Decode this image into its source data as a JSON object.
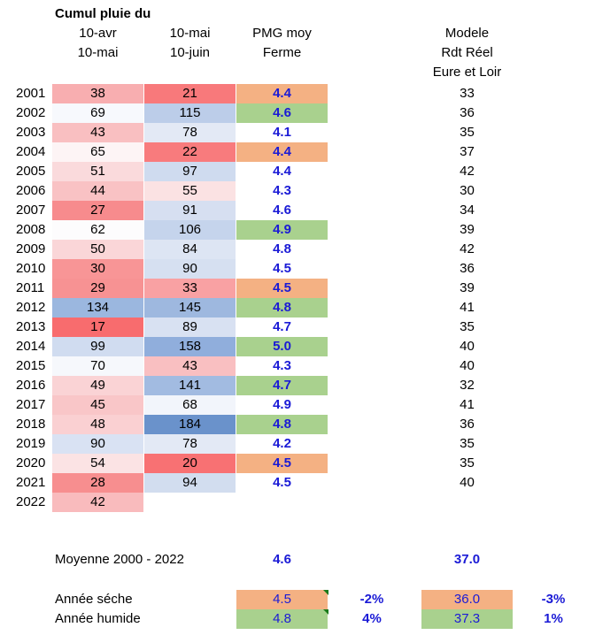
{
  "colors": {
    "dry": "#f4b183",
    "wet": "#a9d18e",
    "blue_text": "#1a1ad6"
  },
  "header": {
    "title": "Cumul pluie du",
    "col_apr": [
      "10-avr",
      "10-mai"
    ],
    "col_jun": [
      "10-mai",
      "10-juin"
    ],
    "col_pmg": [
      "PMG moy",
      "Ferme"
    ],
    "col_mod": [
      "Modele",
      "Rdt Réel",
      "Eure et Loir"
    ]
  },
  "rows": [
    {
      "year": "2001",
      "apr": "38",
      "apr_bg": "#f8aeb0",
      "jun": "21",
      "jun_bg": "#f8797b",
      "pmg": "4.4",
      "pmg_bg": "#f4b183",
      "model": "33"
    },
    {
      "year": "2002",
      "apr": "69",
      "apr_bg": "#f7f9fd",
      "jun": "115",
      "jun_bg": "#bccde9",
      "pmg": "4.6",
      "pmg_bg": "#a9d18e",
      "model": "36"
    },
    {
      "year": "2003",
      "apr": "43",
      "apr_bg": "#f9bfc1",
      "jun": "78",
      "jun_bg": "#e3e9f5",
      "pmg": "4.1",
      "pmg_bg": "",
      "model": "35"
    },
    {
      "year": "2004",
      "apr": "65",
      "apr_bg": "#fdf4f5",
      "jun": "22",
      "jun_bg": "#f87b7d",
      "pmg": "4.4",
      "pmg_bg": "#f4b183",
      "model": "37"
    },
    {
      "year": "2005",
      "apr": "51",
      "apr_bg": "#fadadc",
      "jun": "97",
      "jun_bg": "#cfdbef",
      "pmg": "4.4",
      "pmg_bg": "",
      "model": "42"
    },
    {
      "year": "2006",
      "apr": "44",
      "apr_bg": "#f9c2c4",
      "jun": "55",
      "jun_bg": "#fbe2e3",
      "pmg": "4.3",
      "pmg_bg": "",
      "model": "30"
    },
    {
      "year": "2007",
      "apr": "27",
      "apr_bg": "#f78b8d",
      "jun": "91",
      "jun_bg": "#d6dff1",
      "pmg": "4.6",
      "pmg_bg": "",
      "model": "34"
    },
    {
      "year": "2008",
      "apr": "62",
      "apr_bg": "#fdfcfd",
      "jun": "106",
      "jun_bg": "#c5d4ec",
      "pmg": "4.9",
      "pmg_bg": "#a9d18e",
      "model": "39"
    },
    {
      "year": "2009",
      "apr": "50",
      "apr_bg": "#fad6d8",
      "jun": "84",
      "jun_bg": "#dde5f3",
      "pmg": "4.8",
      "pmg_bg": "",
      "model": "42"
    },
    {
      "year": "2010",
      "apr": "30",
      "apr_bg": "#f89596",
      "jun": "90",
      "jun_bg": "#d6e0f1",
      "pmg": "4.5",
      "pmg_bg": "",
      "model": "36"
    },
    {
      "year": "2011",
      "apr": "29",
      "apr_bg": "#f79293",
      "jun": "33",
      "jun_bg": "#f9a1a3",
      "pmg": "4.5",
      "pmg_bg": "#f4b183",
      "model": "39"
    },
    {
      "year": "2012",
      "apr": "134",
      "apr_bg": "#9bb7df",
      "jun": "145",
      "jun_bg": "#9eb8df",
      "pmg": "4.8",
      "pmg_bg": "#a9d18e",
      "model": "41"
    },
    {
      "year": "2013",
      "apr": "17",
      "apr_bg": "#f86c6e",
      "jun": "89",
      "jun_bg": "#d8e1f2",
      "pmg": "4.7",
      "pmg_bg": "",
      "model": "35"
    },
    {
      "year": "2014",
      "apr": "99",
      "apr_bg": "#d0dcf0",
      "jun": "158",
      "jun_bg": "#90aedc",
      "pmg": "5.0",
      "pmg_bg": "#a9d18e",
      "model": "40"
    },
    {
      "year": "2015",
      "apr": "70",
      "apr_bg": "#f6f8fc",
      "jun": "43",
      "jun_bg": "#f9bfc1",
      "pmg": "4.3",
      "pmg_bg": "",
      "model": "40"
    },
    {
      "year": "2016",
      "apr": "49",
      "apr_bg": "#fad3d5",
      "jun": "141",
      "jun_bg": "#a2bbe1",
      "pmg": "4.7",
      "pmg_bg": "#a9d18e",
      "model": "32"
    },
    {
      "year": "2017",
      "apr": "45",
      "apr_bg": "#f9c6c8",
      "jun": "68",
      "jun_bg": "#f2f5fb",
      "pmg": "4.9",
      "pmg_bg": "",
      "model": "41"
    },
    {
      "year": "2018",
      "apr": "48",
      "apr_bg": "#fad0d2",
      "jun": "184",
      "jun_bg": "#6a92cb",
      "pmg": "4.8",
      "pmg_bg": "#a9d18e",
      "model": "36"
    },
    {
      "year": "2019",
      "apr": "90",
      "apr_bg": "#d9e2f3",
      "jun": "78",
      "jun_bg": "#e3e9f5",
      "pmg": "4.2",
      "pmg_bg": "",
      "model": "35"
    },
    {
      "year": "2020",
      "apr": "54",
      "apr_bg": "#fbe3e4",
      "jun": "20",
      "jun_bg": "#f87173",
      "pmg": "4.5",
      "pmg_bg": "#f4b183",
      "model": "35"
    },
    {
      "year": "2021",
      "apr": "28",
      "apr_bg": "#f78e8f",
      "jun": "94",
      "jun_bg": "#d2ddef",
      "pmg": "4.5",
      "pmg_bg": "",
      "model": "40"
    },
    {
      "year": "2022",
      "apr": "42",
      "apr_bg": "#f9bbbd",
      "jun": "",
      "jun_bg": "",
      "pmg": "",
      "pmg_bg": "",
      "model": ""
    }
  ],
  "summary": {
    "mean_label": "Moyenne 2000 - 2022",
    "mean_pmg": "4.6",
    "mean_model": "37.0",
    "dry_label": "Année séche",
    "dry_pmg": "4.5",
    "dry_pmg_pct": "-2%",
    "dry_model": "36.0",
    "dry_model_pct": "-3%",
    "wet_label": "Année humide",
    "wet_pmg": "4.8",
    "wet_pmg_pct": "4%",
    "wet_model": "37.3",
    "wet_model_pct": "1%"
  }
}
